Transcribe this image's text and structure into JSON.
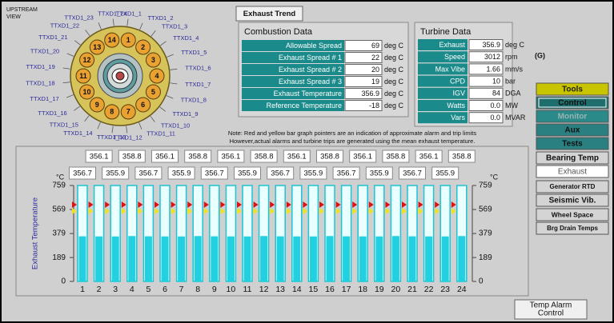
{
  "header": {
    "view_label": [
      "UPSTREAM",
      "VIEW"
    ]
  },
  "wheel": {
    "sensors": [
      "TTXD1_1",
      "TTXD1_2",
      "TTXD1_3",
      "TTXD1_4",
      "TTXD1_5",
      "TTXD1_6",
      "TTXD1_7",
      "TTXD1_8",
      "TTXD1_9",
      "TTXD1_10",
      "TTXD1_11",
      "TTXD1_12",
      "TTXD1_13",
      "TTXD1_14",
      "TTXD1_15",
      "TTXD1_16",
      "TTXD1_17",
      "TTXD1_18",
      "TTXD1_19",
      "TTXD1_20",
      "TTXD1_21",
      "TTXD1_22",
      "TTXD1_23",
      "TTXD1_24"
    ],
    "chambers": [
      1,
      2,
      3,
      4,
      5,
      6,
      7,
      8,
      9,
      10,
      11,
      12,
      13,
      14
    ]
  },
  "buttons": {
    "exhaust_trend": "Exhaust Trend",
    "temp_alarm_control": [
      "Temp Alarm",
      "Control"
    ]
  },
  "combustion": {
    "title": "Combustion Data",
    "rows": [
      {
        "label": "Allowable Spread",
        "value": 69,
        "unit": "deg C"
      },
      {
        "label": "Exhaust Spread # 1",
        "value": 22,
        "unit": "deg C"
      },
      {
        "label": "Exhaust Spread # 2",
        "value": 20,
        "unit": "deg C"
      },
      {
        "label": "Exhaust Spread # 3",
        "value": 19,
        "unit": "deg C"
      },
      {
        "label": "Exhaust Temperature",
        "value": 356.9,
        "unit": "deg C"
      },
      {
        "label": "Reference Temperature",
        "value": -18,
        "unit": "deg C"
      }
    ]
  },
  "turbine": {
    "title": "Turbine Data",
    "rows": [
      {
        "label": "Exhaust",
        "value": 356.9,
        "unit": "deg C"
      },
      {
        "label": "Speed",
        "value": 3012,
        "unit": "rpm"
      },
      {
        "label": "Max Vibe",
        "value": 1.66,
        "unit": "mm/s"
      },
      {
        "label": "CPD",
        "value": 10,
        "unit": "bar"
      },
      {
        "label": "IGV",
        "value": 84,
        "unit": "DGA"
      },
      {
        "label": "Watts",
        "value": "0.0",
        "unit": "MW"
      },
      {
        "label": "Vars",
        "value": "0.0",
        "unit": "MVAR"
      }
    ]
  },
  "unit_group": "(G)",
  "nav": [
    "Tools",
    "Control",
    "Monitor",
    "Aux",
    "Tests",
    "Bearing Temp",
    "Exhaust",
    "Generator RTD",
    "Seismic Vib.",
    "Wheel Space",
    "Brg Drain Temps"
  ],
  "note": [
    "Note: Red and yellow bar graph pointers are an indication of approximate alarm and trip limits",
    "However,actual alarms and turbine trips are generated using the mean exhaust temperature."
  ],
  "chart_data": {
    "type": "bar",
    "y_label": "Exhaust Temperature",
    "y_unit": "°C",
    "categories": [
      "1",
      "2",
      "3",
      "4",
      "5",
      "6",
      "7",
      "8",
      "9",
      "10",
      "11",
      "12",
      "13",
      "14",
      "15",
      "16",
      "17",
      "18",
      "19",
      "20",
      "21",
      "22",
      "23",
      "24"
    ],
    "values": [
      356.7,
      356.1,
      355.9,
      358.8,
      356.7,
      356.1,
      355.9,
      358.8,
      356.7,
      356.1,
      355.9,
      358.8,
      356.7,
      356.1,
      355.9,
      358.8,
      356.7,
      356.1,
      355.9,
      358.8,
      356.7,
      356.1,
      355.9,
      358.8
    ],
    "color": "#22d0e0",
    "ylim": [
      0,
      759
    ],
    "yticks": [
      0,
      189,
      379,
      569,
      759
    ],
    "pointers": [
      {
        "color": "#e01010",
        "value": 607
      },
      {
        "color": "#f0e020",
        "value": 556
      }
    ]
  }
}
